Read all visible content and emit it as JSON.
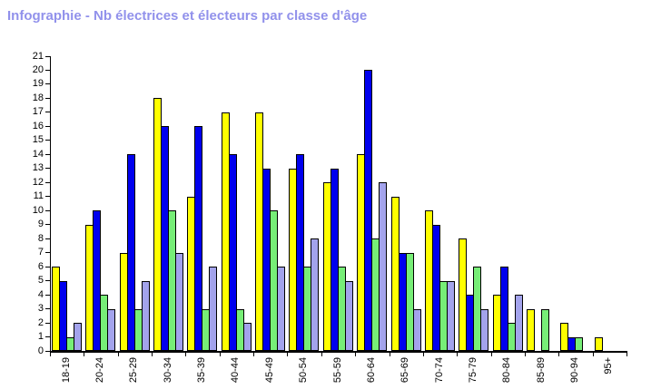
{
  "page": {
    "background": "#FFFFFF"
  },
  "title": {
    "text": "Infographie - Nb électrices et électeurs par classe d'âge",
    "color": "#9191EB"
  },
  "chart_data": {
    "type": "bar",
    "title": "Infographie - Nb électrices et électeurs par classe d'âge",
    "categories": [
      "18-19",
      "20-24",
      "25-29",
      "30-34",
      "35-39",
      "40-44",
      "45-49",
      "50-54",
      "55-59",
      "60-64",
      "65-69",
      "70-74",
      "75-79",
      "80-84",
      "85-89",
      "90-94",
      "95+"
    ],
    "series": [
      {
        "name": "yellow",
        "color": "#FFFF00",
        "values": [
          6,
          9,
          7,
          18,
          11,
          17,
          17,
          13,
          12,
          14,
          11,
          10,
          8,
          4,
          3,
          2,
          1
        ]
      },
      {
        "name": "blue",
        "color": "#0000EE",
        "values": [
          5,
          10,
          14,
          16,
          16,
          14,
          13,
          14,
          13,
          20,
          7,
          9,
          4,
          6,
          0,
          1,
          0
        ]
      },
      {
        "name": "green",
        "color": "#77EE77",
        "values": [
          1,
          4,
          3,
          10,
          3,
          3,
          10,
          6,
          6,
          8,
          7,
          5,
          6,
          2,
          3,
          1,
          0
        ]
      },
      {
        "name": "lavender",
        "color": "#A3A3EC",
        "values": [
          2,
          3,
          5,
          7,
          6,
          2,
          6,
          8,
          5,
          12,
          3,
          5,
          3,
          4,
          0,
          0,
          0
        ]
      }
    ],
    "xlabel": "",
    "ylabel": "",
    "ylim": [
      0,
      21
    ],
    "y_tick_step": 1,
    "grid": false,
    "legend_position": "none",
    "bar_outline_color": "#000000",
    "axis_color": "#000000"
  }
}
